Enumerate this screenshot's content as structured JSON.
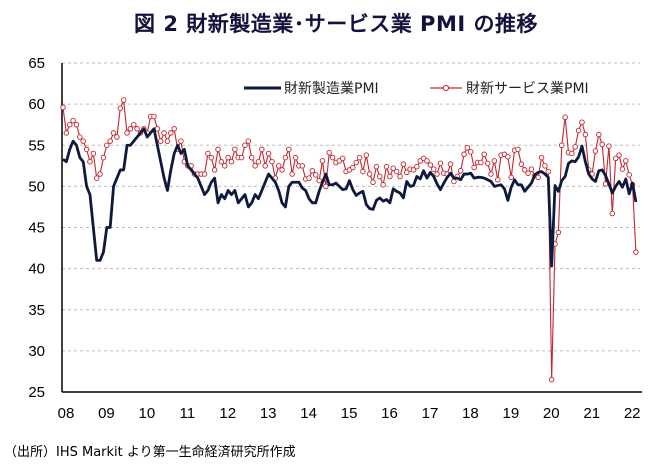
{
  "chart_data": {
    "type": "line",
    "title": "図 2 財新製造業･サービス業 PMI の推移",
    "source": "（出所）IHS Markit より第一生命経済研究所作成",
    "xlabel": "",
    "ylabel": "",
    "ylim": [
      25,
      65
    ],
    "yticks": [
      "25",
      "30",
      "35",
      "40",
      "45",
      "50",
      "55",
      "60",
      "65"
    ],
    "xticks": [
      "08",
      "09",
      "10",
      "11",
      "12",
      "13",
      "14",
      "15",
      "16",
      "17",
      "18",
      "19",
      "20",
      "21",
      "22"
    ],
    "x_start": "2008-01",
    "x_end": "2022-03",
    "frequency": "monthly",
    "grid": "horizontal dashed",
    "legend": "top-right",
    "colors": {
      "manufacturing": "#0d1a3d",
      "services": "#c4262e"
    },
    "series": [
      {
        "name": "財新製造業PMI",
        "values": [
          53.3,
          53,
          54.5,
          55.5,
          55,
          53.5,
          53,
          50,
          49,
          45,
          41,
          41,
          42,
          45,
          45,
          50,
          51,
          52,
          52,
          55,
          55,
          55.5,
          56,
          56.5,
          57,
          56,
          56.5,
          57,
          55,
          53,
          51,
          49.5,
          52,
          54,
          55,
          54,
          54.5,
          52.5,
          52,
          51.5,
          51,
          50,
          49,
          49.5,
          50.5,
          51,
          48,
          49,
          48.5,
          49.5,
          49,
          49.5,
          48,
          48.5,
          49,
          47.5,
          48,
          49,
          48.5,
          49.5,
          50.5,
          51.5,
          51,
          50.5,
          49.5,
          48,
          47.5,
          50,
          50.5,
          50.5,
          50.5,
          49.8,
          49.5,
          48.5,
          48,
          48,
          49.4,
          50.5,
          51.5,
          50.2,
          50.2,
          50.4,
          50,
          49.6,
          49.7,
          50.7,
          49.6,
          48.9,
          49.2,
          49.4,
          47.8,
          47.3,
          47.2,
          48.3,
          48.6,
          48.2,
          48.4,
          48,
          49.7,
          49.4,
          49.2,
          48.6,
          50.6,
          50,
          50.1,
          51.2,
          50.9,
          51.9,
          51,
          51.7,
          51.2,
          50.3,
          49.6,
          50.4,
          51.1,
          51.6,
          51,
          51,
          50.8,
          51.5,
          51.5,
          51.6,
          51,
          51.1,
          51.1,
          51,
          50.8,
          50.6,
          50,
          50.1,
          50.2,
          49.7,
          48.3,
          49.9,
          50.8,
          50.2,
          50.2,
          49.4,
          49.9,
          50.4,
          51.4,
          51.7,
          51.8,
          51.5,
          51.1,
          40.3,
          50.1,
          49.4,
          50.7,
          51.2,
          52.8,
          53.1,
          53,
          53.6,
          54.9,
          53,
          51.5,
          50.9,
          50.6,
          51.9,
          52,
          51.3,
          50.3,
          49.2,
          50,
          50.6,
          49.9,
          50.9,
          49.1,
          50.4,
          48.1
        ]
      },
      {
        "name": "財新サービス業PMI",
        "values": [
          59.6,
          56.5,
          57.5,
          58,
          57.5,
          56,
          55.5,
          54.5,
          53,
          54,
          51,
          51.5,
          53.5,
          55,
          55.5,
          56.5,
          56,
          59.5,
          60.5,
          56.5,
          57,
          57.5,
          57,
          56.5,
          57,
          56.5,
          58.5,
          58.5,
          57,
          55.5,
          56.5,
          55.5,
          56.5,
          57,
          54.5,
          55.5,
          53,
          52.5,
          52.5,
          51.5,
          51.5,
          51.5,
          51.5,
          54,
          53.5,
          52,
          54.5,
          53,
          52.5,
          53.5,
          53,
          54.5,
          53.5,
          53.5,
          55,
          55.5,
          53.5,
          52.5,
          53,
          54.5,
          52.5,
          54,
          53,
          51,
          52.5,
          52,
          53.5,
          54.5,
          51.5,
          53.5,
          52.5,
          52.5,
          50.9,
          51,
          51.9,
          51.4,
          50.7,
          53.1,
          50,
          54.1,
          53.5,
          52.9,
          53.1,
          53.4,
          51.8,
          52,
          52.3,
          52.9,
          53.5,
          51.8,
          53.8,
          51.5,
          50.5,
          52.4,
          51.2,
          50.2,
          52.4,
          51.2,
          52.2,
          51.8,
          51.2,
          52.7,
          51.7,
          52.1,
          52,
          52.4,
          53.1,
          53.4,
          53.1,
          52.6,
          52.1,
          51.5,
          52.8,
          51.6,
          51.5,
          52.7,
          50.6,
          51.2,
          51.9,
          53.9,
          54.7,
          54.2,
          52.3,
          52.9,
          52.9,
          53.9,
          52.8,
          51.5,
          53.1,
          50.8,
          53.8,
          53.9,
          53.6,
          51.1,
          54.4,
          54.5,
          52.7,
          52,
          51.6,
          52.1,
          51.3,
          51.1,
          53.5,
          52.5,
          51.8,
          26.5,
          43,
          44.4,
          55,
          58.4,
          54.1,
          54,
          54.8,
          56.8,
          57.8,
          56.3,
          52,
          51.5,
          54.3,
          56.3,
          55.1,
          50.3,
          54.9,
          46.7,
          53.4,
          53.8,
          52.1,
          53.1,
          51.4,
          50.2,
          42
        ]
      }
    ]
  }
}
